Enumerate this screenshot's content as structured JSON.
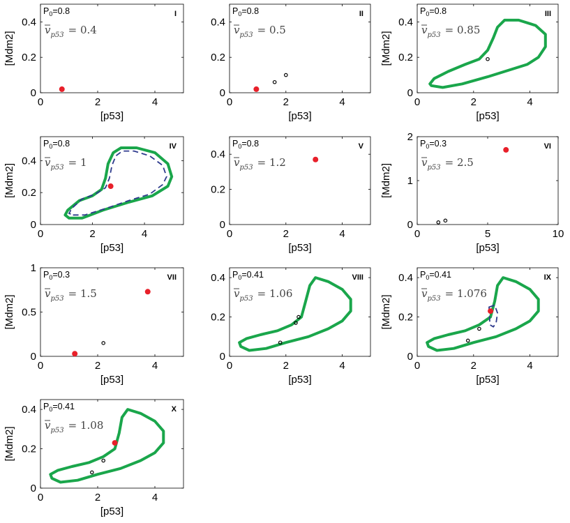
{
  "chart_data": [
    {
      "type": "scatter",
      "panel": "I",
      "p0": "0.8",
      "vbar": "0.4",
      "xlabel": "[p53]",
      "ylabel": "[Mdm2]",
      "xlim": [
        0,
        5
      ],
      "ylim": [
        0,
        0.5
      ],
      "xticks": [
        0,
        2,
        4
      ],
      "yticks": [
        0,
        0.2,
        0.4
      ],
      "stable_points": [
        [
          0.75,
          0.02
        ]
      ],
      "unstable_points": [],
      "stable_cycle": [],
      "unstable_cycle": []
    },
    {
      "type": "scatter",
      "panel": "II",
      "p0": "0.8",
      "vbar": "0.5",
      "xlabel": "[p53]",
      "ylabel": "",
      "xlim": [
        0,
        5
      ],
      "ylim": [
        0,
        0.5
      ],
      "xticks": [
        0,
        2,
        4
      ],
      "yticks": [
        0,
        0.2,
        0.4
      ],
      "stable_points": [
        [
          0.95,
          0.02
        ]
      ],
      "unstable_points": [
        [
          1.6,
          0.06
        ],
        [
          2.0,
          0.1
        ]
      ],
      "stable_cycle": [],
      "unstable_cycle": []
    },
    {
      "type": "line",
      "panel": "III",
      "p0": "0.8",
      "vbar": "0.85",
      "xlabel": "[p53]",
      "ylabel": "[Mdm2]",
      "xlim": [
        0,
        5
      ],
      "ylim": [
        0,
        0.5
      ],
      "xticks": [
        0,
        2,
        4
      ],
      "yticks": [
        0,
        0.2,
        0.4
      ],
      "stable_points": [],
      "unstable_points": [
        [
          2.5,
          0.19
        ]
      ],
      "stable_cycle": [
        [
          0.5,
          0.04
        ],
        [
          0.9,
          0.03
        ],
        [
          1.6,
          0.05
        ],
        [
          2.5,
          0.09
        ],
        [
          3.3,
          0.13
        ],
        [
          3.9,
          0.16
        ],
        [
          4.3,
          0.2
        ],
        [
          4.55,
          0.26
        ],
        [
          4.55,
          0.33
        ],
        [
          4.2,
          0.38
        ],
        [
          3.6,
          0.41
        ],
        [
          3.1,
          0.41
        ],
        [
          2.85,
          0.37
        ],
        [
          2.7,
          0.31
        ],
        [
          2.5,
          0.24
        ],
        [
          2.2,
          0.19
        ],
        [
          1.7,
          0.16
        ],
        [
          1.1,
          0.12
        ],
        [
          0.6,
          0.08
        ],
        [
          0.45,
          0.05
        ],
        [
          0.5,
          0.04
        ]
      ],
      "unstable_cycle": []
    },
    {
      "type": "line",
      "panel": "IV",
      "p0": "0.8",
      "vbar": "1",
      "xlabel": "[p53]",
      "ylabel": "[Mdm2]",
      "xlim": [
        0,
        5.5
      ],
      "ylim": [
        0,
        0.55
      ],
      "xticks": [
        0,
        2,
        4
      ],
      "yticks": [
        0,
        0.2,
        0.4
      ],
      "stable_points": [
        [
          2.7,
          0.24
        ]
      ],
      "unstable_points": [],
      "stable_cycle": [
        [
          1.1,
          0.04
        ],
        [
          1.6,
          0.04
        ],
        [
          2.4,
          0.09
        ],
        [
          3.4,
          0.14
        ],
        [
          4.3,
          0.18
        ],
        [
          4.9,
          0.24
        ],
        [
          5.05,
          0.3
        ],
        [
          4.9,
          0.38
        ],
        [
          4.4,
          0.45
        ],
        [
          3.7,
          0.48
        ],
        [
          3.1,
          0.48
        ],
        [
          2.8,
          0.45
        ],
        [
          2.6,
          0.38
        ],
        [
          2.5,
          0.29
        ],
        [
          2.35,
          0.22
        ],
        [
          2.0,
          0.18
        ],
        [
          1.5,
          0.15
        ],
        [
          1.05,
          0.09
        ],
        [
          0.95,
          0.06
        ],
        [
          1.1,
          0.04
        ]
      ],
      "unstable_cycle": [
        [
          1.25,
          0.06
        ],
        [
          1.7,
          0.06
        ],
        [
          2.5,
          0.1
        ],
        [
          3.4,
          0.15
        ],
        [
          4.2,
          0.19
        ],
        [
          4.7,
          0.25
        ],
        [
          4.85,
          0.3
        ],
        [
          4.7,
          0.37
        ],
        [
          4.2,
          0.43
        ],
        [
          3.6,
          0.46
        ],
        [
          3.15,
          0.46
        ],
        [
          2.9,
          0.43
        ],
        [
          2.75,
          0.37
        ],
        [
          2.65,
          0.29
        ],
        [
          2.5,
          0.23
        ],
        [
          2.1,
          0.19
        ],
        [
          1.6,
          0.16
        ],
        [
          1.2,
          0.1
        ],
        [
          1.1,
          0.07
        ],
        [
          1.25,
          0.06
        ]
      ]
    },
    {
      "type": "scatter",
      "panel": "V",
      "p0": "0.8",
      "vbar": "1.2",
      "xlabel": "[p53]",
      "ylabel": "",
      "xlim": [
        0,
        5
      ],
      "ylim": [
        0,
        0.5
      ],
      "xticks": [
        0,
        2,
        4
      ],
      "yticks": [
        0,
        0.2,
        0.4
      ],
      "stable_points": [
        [
          3.05,
          0.37
        ]
      ],
      "unstable_points": [],
      "stable_cycle": [],
      "unstable_cycle": []
    },
    {
      "type": "scatter",
      "panel": "VI",
      "p0": "0.3",
      "vbar": "2.5",
      "xlabel": "[p53]",
      "ylabel": "[Mdm2]",
      "xlim": [
        0,
        10
      ],
      "ylim": [
        0,
        2
      ],
      "xticks": [
        0,
        5,
        10
      ],
      "yticks": [
        0,
        1,
        2
      ],
      "stable_points": [
        [
          6.3,
          1.7
        ]
      ],
      "unstable_points": [
        [
          1.5,
          0.05
        ],
        [
          2.0,
          0.09
        ]
      ],
      "stable_cycle": [],
      "unstable_cycle": []
    },
    {
      "type": "scatter",
      "panel": "VII",
      "p0": "0.3",
      "vbar": "1.5",
      "xlabel": "[p53]",
      "ylabel": "[Mdm2]",
      "xlim": [
        0,
        5
      ],
      "ylim": [
        0,
        1
      ],
      "xticks": [
        0,
        2,
        4
      ],
      "yticks": [
        0,
        0.5,
        1
      ],
      "stable_points": [
        [
          1.2,
          0.03
        ],
        [
          3.75,
          0.73
        ]
      ],
      "unstable_points": [
        [
          2.2,
          0.15
        ]
      ],
      "stable_cycle": [],
      "unstable_cycle": []
    },
    {
      "type": "line",
      "panel": "VIII",
      "p0": "0.41",
      "vbar": "1.06",
      "xlabel": "[p53]",
      "ylabel": "",
      "xlim": [
        0,
        5
      ],
      "ylim": [
        0,
        0.45
      ],
      "xticks": [
        0,
        2,
        4
      ],
      "yticks": [
        0,
        0.2,
        0.4
      ],
      "stable_points": [],
      "unstable_points": [
        [
          1.8,
          0.07
        ],
        [
          2.35,
          0.17
        ],
        [
          2.45,
          0.2
        ]
      ],
      "stable_cycle": [
        [
          0.4,
          0.05
        ],
        [
          0.7,
          0.03
        ],
        [
          1.3,
          0.04
        ],
        [
          2.0,
          0.07
        ],
        [
          2.8,
          0.1
        ],
        [
          3.5,
          0.14
        ],
        [
          4.0,
          0.18
        ],
        [
          4.3,
          0.23
        ],
        [
          4.3,
          0.29
        ],
        [
          4.0,
          0.34
        ],
        [
          3.5,
          0.38
        ],
        [
          3.05,
          0.4
        ],
        [
          2.85,
          0.36
        ],
        [
          2.7,
          0.28
        ],
        [
          2.55,
          0.2
        ],
        [
          2.2,
          0.16
        ],
        [
          1.7,
          0.13
        ],
        [
          1.1,
          0.11
        ],
        [
          0.6,
          0.09
        ],
        [
          0.35,
          0.07
        ],
        [
          0.4,
          0.05
        ]
      ],
      "unstable_cycle": []
    },
    {
      "type": "line",
      "panel": "IX",
      "p0": "0.41",
      "vbar": "1.076",
      "xlabel": "[p53]",
      "ylabel": "[Mdm2]",
      "xlim": [
        0,
        5
      ],
      "ylim": [
        0,
        0.45
      ],
      "xticks": [
        0,
        2,
        4
      ],
      "yticks": [
        0,
        0.2,
        0.4
      ],
      "stable_points": [
        [
          2.6,
          0.23
        ]
      ],
      "unstable_points": [
        [
          1.8,
          0.08
        ],
        [
          2.2,
          0.14
        ]
      ],
      "stable_cycle": [
        [
          0.4,
          0.05
        ],
        [
          0.7,
          0.03
        ],
        [
          1.3,
          0.04
        ],
        [
          2.0,
          0.07
        ],
        [
          2.8,
          0.1
        ],
        [
          3.5,
          0.14
        ],
        [
          4.0,
          0.18
        ],
        [
          4.3,
          0.23
        ],
        [
          4.3,
          0.29
        ],
        [
          4.0,
          0.34
        ],
        [
          3.5,
          0.38
        ],
        [
          3.05,
          0.4
        ],
        [
          2.85,
          0.36
        ],
        [
          2.75,
          0.28
        ],
        [
          2.6,
          0.2
        ],
        [
          2.2,
          0.16
        ],
        [
          1.7,
          0.13
        ],
        [
          1.1,
          0.11
        ],
        [
          0.6,
          0.09
        ],
        [
          0.35,
          0.07
        ],
        [
          0.4,
          0.05
        ]
      ],
      "unstable_cycle": [
        [
          2.55,
          0.25
        ],
        [
          2.75,
          0.26
        ],
        [
          2.85,
          0.22
        ],
        [
          2.8,
          0.17
        ],
        [
          2.7,
          0.15
        ],
        [
          2.58,
          0.16
        ]
      ]
    },
    {
      "type": "line",
      "panel": "X",
      "p0": "0.41",
      "vbar": "1.08",
      "xlabel": "[p53]",
      "ylabel": "[Mdm2]",
      "xlim": [
        0,
        5
      ],
      "ylim": [
        0,
        0.45
      ],
      "xticks": [
        0,
        2,
        4
      ],
      "yticks": [
        0,
        0.2,
        0.4
      ],
      "stable_points": [
        [
          2.6,
          0.23
        ]
      ],
      "unstable_points": [
        [
          1.8,
          0.08
        ],
        [
          2.2,
          0.14
        ]
      ],
      "stable_cycle": [
        [
          0.4,
          0.05
        ],
        [
          0.7,
          0.03
        ],
        [
          1.3,
          0.04
        ],
        [
          2.0,
          0.07
        ],
        [
          2.8,
          0.1
        ],
        [
          3.5,
          0.14
        ],
        [
          4.0,
          0.18
        ],
        [
          4.3,
          0.23
        ],
        [
          4.3,
          0.29
        ],
        [
          4.0,
          0.34
        ],
        [
          3.5,
          0.38
        ],
        [
          3.05,
          0.4
        ],
        [
          2.85,
          0.36
        ],
        [
          2.75,
          0.28
        ],
        [
          2.6,
          0.2
        ],
        [
          2.2,
          0.16
        ],
        [
          1.7,
          0.13
        ],
        [
          1.1,
          0.11
        ],
        [
          0.6,
          0.09
        ],
        [
          0.35,
          0.07
        ],
        [
          0.4,
          0.05
        ]
      ],
      "unstable_cycle": []
    }
  ]
}
